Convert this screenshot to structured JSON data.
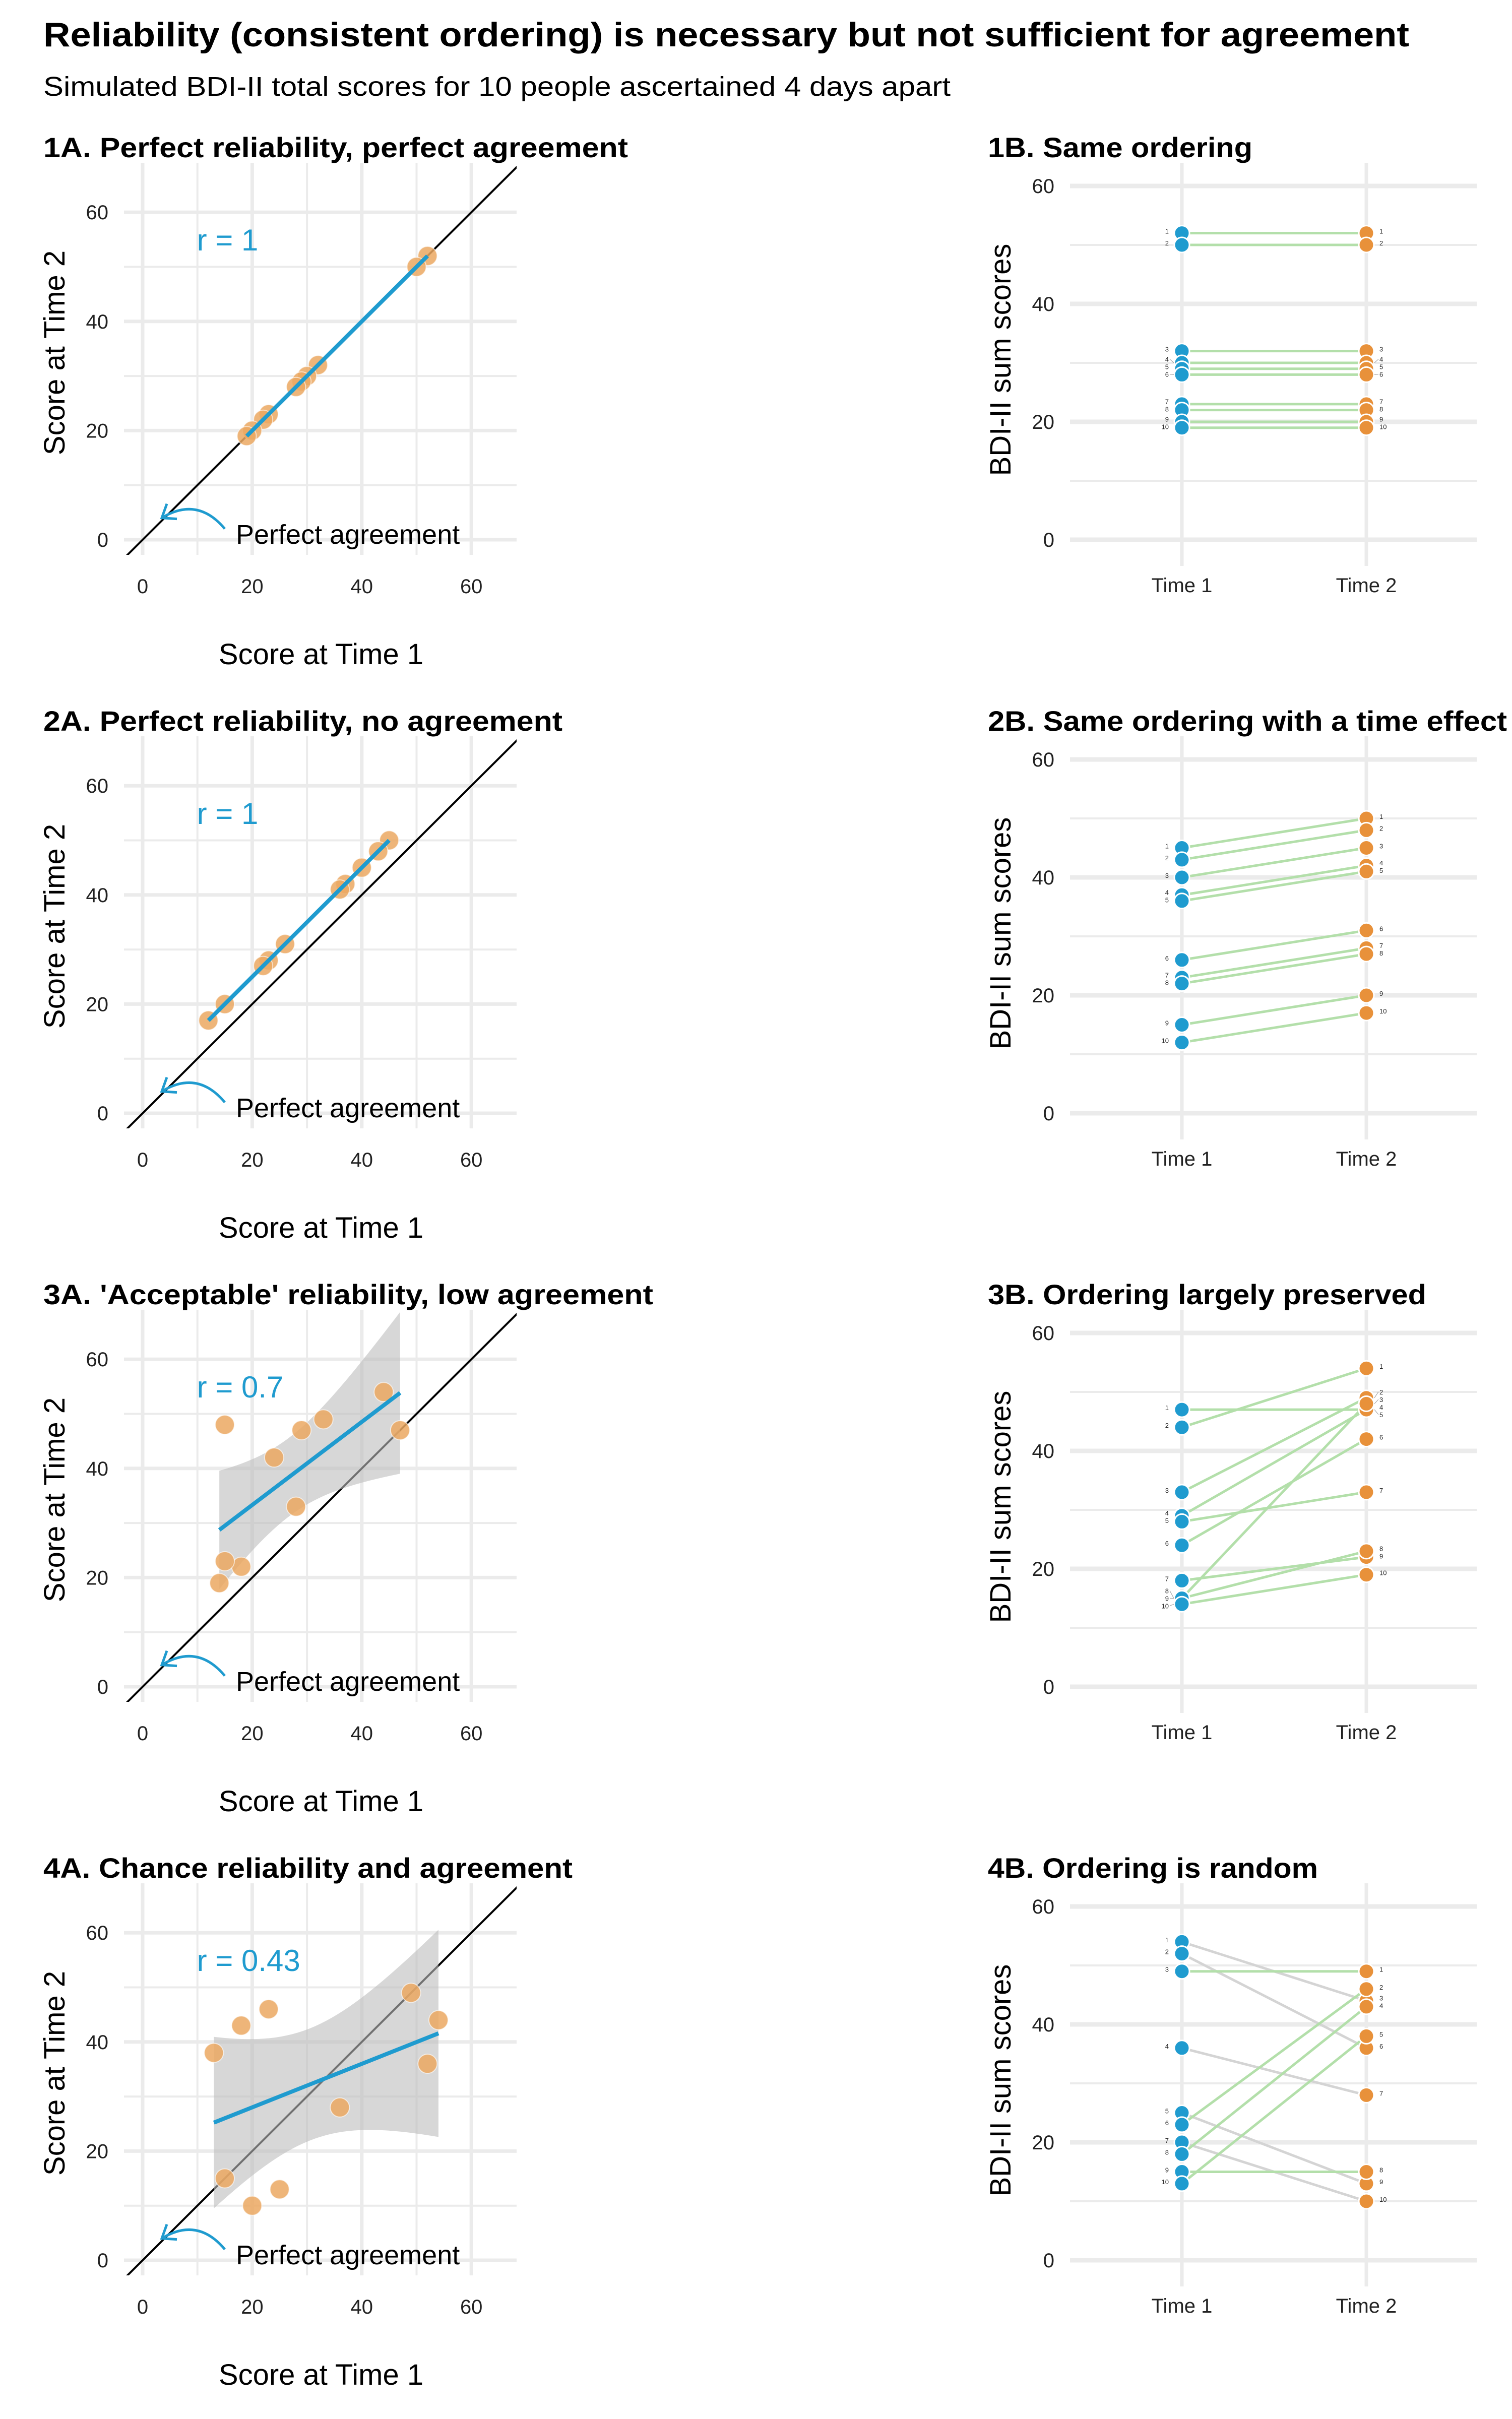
{
  "title": "Reliability (consistent ordering) is necessary but not sufficient for agreement",
  "subtitle": "Simulated BDI-II total scores for 10 people ascertained 4 days apart",
  "colors": {
    "time1": "#1f9bcf",
    "time2": "#e8913a",
    "scatter_point": "#eba862",
    "fit_line": "#1f9bcf",
    "ribbon": "#bdbdbd",
    "increase_line": "#b3dfaa",
    "decrease_line": "#d4d4d4",
    "grid": "#ebebeb"
  },
  "chart_data": [
    {
      "panel": "1A",
      "type": "scatter",
      "title": "1A. Perfect reliability, perfect agreement",
      "x": [
        52,
        50,
        32,
        30,
        29,
        28,
        23,
        22,
        20,
        19
      ],
      "y": [
        52,
        50,
        32,
        30,
        29,
        28,
        23,
        22,
        20,
        19
      ],
      "r_label": "r = 1",
      "annotation": "Perfect agreement",
      "xlabel": "Score at Time 1",
      "ylabel": "Score at Time 2",
      "xticks": [
        0,
        20,
        40,
        60
      ],
      "yticks": [
        0,
        20,
        40,
        60
      ],
      "xlim": [
        -3.4,
        68.3
      ],
      "ylim": [
        -2.8,
        69
      ],
      "reference_line": "y = x",
      "fit": "linear",
      "grid": true
    },
    {
      "panel": "1B",
      "type": "line",
      "title": "1B. Same ordering",
      "categories": [
        "Time 1",
        "Time 2"
      ],
      "time1": [
        52,
        50,
        32,
        30,
        29,
        28,
        23,
        22,
        20,
        19
      ],
      "time2": [
        52,
        50,
        32,
        30,
        29,
        28,
        23,
        22,
        20,
        19
      ],
      "point_labels": [
        "1",
        "2",
        "3",
        "4",
        "5",
        "6",
        "7",
        "8",
        "9",
        "10"
      ],
      "ylabel": "BDI-II sum scores",
      "yticks": [
        0,
        20,
        40,
        60
      ],
      "ylim": [
        -2,
        64
      ],
      "grid": true
    },
    {
      "panel": "2A",
      "type": "scatter",
      "title": "2A. Perfect reliability, no agreement",
      "x": [
        45,
        43,
        40,
        37,
        36,
        26,
        23,
        22,
        15,
        12
      ],
      "y": [
        50,
        48,
        45,
        42,
        41,
        31,
        28,
        27,
        20,
        17
      ],
      "r_label": "r = 1",
      "annotation": "Perfect agreement",
      "xlabel": "Score at Time 1",
      "ylabel": "Score at Time 2",
      "xticks": [
        0,
        20,
        40,
        60
      ],
      "yticks": [
        0,
        20,
        40,
        60
      ],
      "xlim": [
        -3.4,
        68.3
      ],
      "ylim": [
        -2.8,
        69
      ],
      "reference_line": "y = x",
      "fit": "linear",
      "grid": true
    },
    {
      "panel": "2B",
      "type": "line",
      "title": "2B. Same ordering with a time effect",
      "categories": [
        "Time 1",
        "Time 2"
      ],
      "time1": [
        45,
        43,
        40,
        37,
        36,
        26,
        23,
        22,
        15,
        12
      ],
      "time2": [
        50,
        48,
        45,
        42,
        41,
        31,
        28,
        27,
        20,
        17
      ],
      "point_labels": [
        "1",
        "2",
        "3",
        "4",
        "5",
        "6",
        "7",
        "8",
        "9",
        "10"
      ],
      "ylabel": "BDI-II sum scores",
      "yticks": [
        0,
        20,
        40,
        60
      ],
      "ylim": [
        -2,
        64
      ],
      "grid": true
    },
    {
      "panel": "3A",
      "type": "scatter",
      "title": "3A. 'Acceptable' reliability, low agreement",
      "x": [
        47,
        44,
        33,
        29,
        28,
        24,
        18,
        15,
        15,
        14
      ],
      "y": [
        47,
        54,
        49,
        47,
        33,
        42,
        22,
        48,
        23,
        19
      ],
      "r_label": "r = 0.7",
      "annotation": "Perfect agreement",
      "xlabel": "Score at Time 1",
      "ylabel": "Score at Time 2",
      "xticks": [
        0,
        20,
        40,
        60
      ],
      "yticks": [
        0,
        20,
        40,
        60
      ],
      "xlim": [
        -3.4,
        68.3
      ],
      "ylim": [
        -2.8,
        69
      ],
      "reference_line": "y = x",
      "fit": "linear with 95% CI",
      "grid": true
    },
    {
      "panel": "3B",
      "type": "line",
      "title": "3B. Ordering largely preserved",
      "categories": [
        "Time 1",
        "Time 2"
      ],
      "time1": [
        47,
        44,
        33,
        29,
        28,
        24,
        18,
        15,
        15,
        14
      ],
      "time2": [
        47,
        54,
        49,
        47,
        33,
        42,
        22,
        48,
        23,
        19
      ],
      "point_labels": [
        "1",
        "2",
        "3",
        "4",
        "5",
        "6",
        "7",
        "8",
        "9",
        "10"
      ],
      "ylabel": "BDI-II sum scores",
      "yticks": [
        0,
        20,
        40,
        60
      ],
      "ylim": [
        -2,
        64
      ],
      "grid": true
    },
    {
      "panel": "4A",
      "type": "scatter",
      "title": "4A. Chance reliability and agreement",
      "x": [
        54,
        52,
        49,
        36,
        25,
        23,
        20,
        18,
        15,
        13
      ],
      "y": [
        44,
        36,
        49,
        28,
        13,
        46,
        10,
        43,
        15,
        38
      ],
      "r_label": "r = 0.43",
      "annotation": "Perfect agreement",
      "xlabel": "Score at Time 1",
      "ylabel": "Score at Time 2",
      "xticks": [
        0,
        20,
        40,
        60
      ],
      "yticks": [
        0,
        20,
        40,
        60
      ],
      "xlim": [
        -3.4,
        68.3
      ],
      "ylim": [
        -2.8,
        69
      ],
      "reference_line": "y = x",
      "fit": "linear with 95% CI",
      "grid": true
    },
    {
      "panel": "4B",
      "type": "line",
      "title": "4B. Ordering is random",
      "categories": [
        "Time 1",
        "Time 2"
      ],
      "time1": [
        54,
        52,
        49,
        36,
        25,
        23,
        20,
        18,
        15,
        13
      ],
      "time2": [
        44,
        36,
        49,
        28,
        13,
        46,
        10,
        43,
        15,
        38
      ],
      "point_labels": [
        "1",
        "2",
        "3",
        "4",
        "5",
        "6",
        "7",
        "8",
        "9",
        "10"
      ],
      "ylabel": "BDI-II sum scores",
      "yticks": [
        0,
        20,
        40,
        60
      ],
      "ylim": [
        -2,
        64
      ],
      "grid": true
    }
  ]
}
